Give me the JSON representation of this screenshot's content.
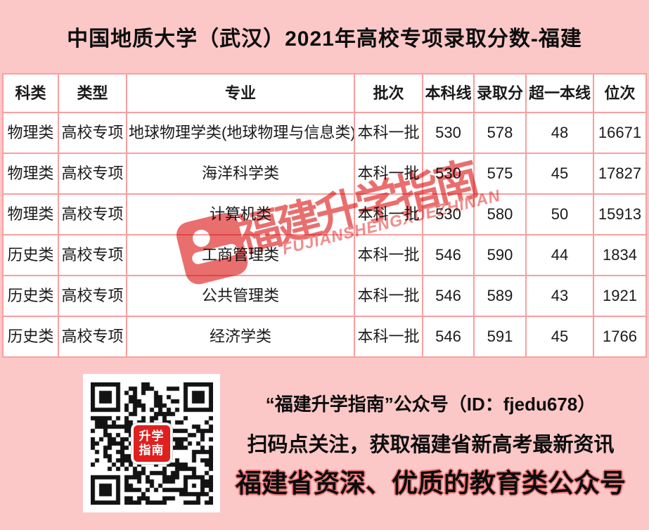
{
  "title": "中国地质大学（武汉）2021年高校专项录取分数-福建",
  "table": {
    "headers": [
      "科类",
      "类型",
      "专业",
      "批次",
      "本科线",
      "录取分",
      "超一本线",
      "位次"
    ],
    "rows": [
      [
        "物理类",
        "高校专项",
        "地球物理学类(地球物理与信息类)",
        "本科一批",
        "530",
        "578",
        "48",
        "16671"
      ],
      [
        "物理类",
        "高校专项",
        "海洋科学类",
        "本科一批",
        "530",
        "575",
        "45",
        "17827"
      ],
      [
        "物理类",
        "高校专项",
        "计算机类",
        "本科一批",
        "530",
        "580",
        "50",
        "15913"
      ],
      [
        "历史类",
        "高校专项",
        "工商管理类",
        "本科一批",
        "546",
        "590",
        "44",
        "1834"
      ],
      [
        "历史类",
        "高校专项",
        "公共管理类",
        "本科一批",
        "546",
        "589",
        "43",
        "1921"
      ],
      [
        "历史类",
        "高校专项",
        "经济学类",
        "本科一批",
        "546",
        "591",
        "45",
        "1766"
      ]
    ]
  },
  "watermark": {
    "text": "福建升学指南",
    "subtext": "FUJIANSHENGXUEZHINAN"
  },
  "qr_label": {
    "line1": "升学",
    "line2": "指南"
  },
  "footer": {
    "line1": "“福建升学指南”公众号（ID：fjedu678）",
    "line2": "扫码点关注，获取福建省新高考最新资讯",
    "line3": "福建省资深、优质的教育类公众号"
  },
  "colors": {
    "page_bg": "#fcc7c7",
    "table_border": "#f89f9f",
    "cell_bg": "#ffffff",
    "text": "#111111",
    "watermark_red": "#e96e6e",
    "qr_label_red": "#e01f1f",
    "footer_outline_red": "#ee7979"
  }
}
